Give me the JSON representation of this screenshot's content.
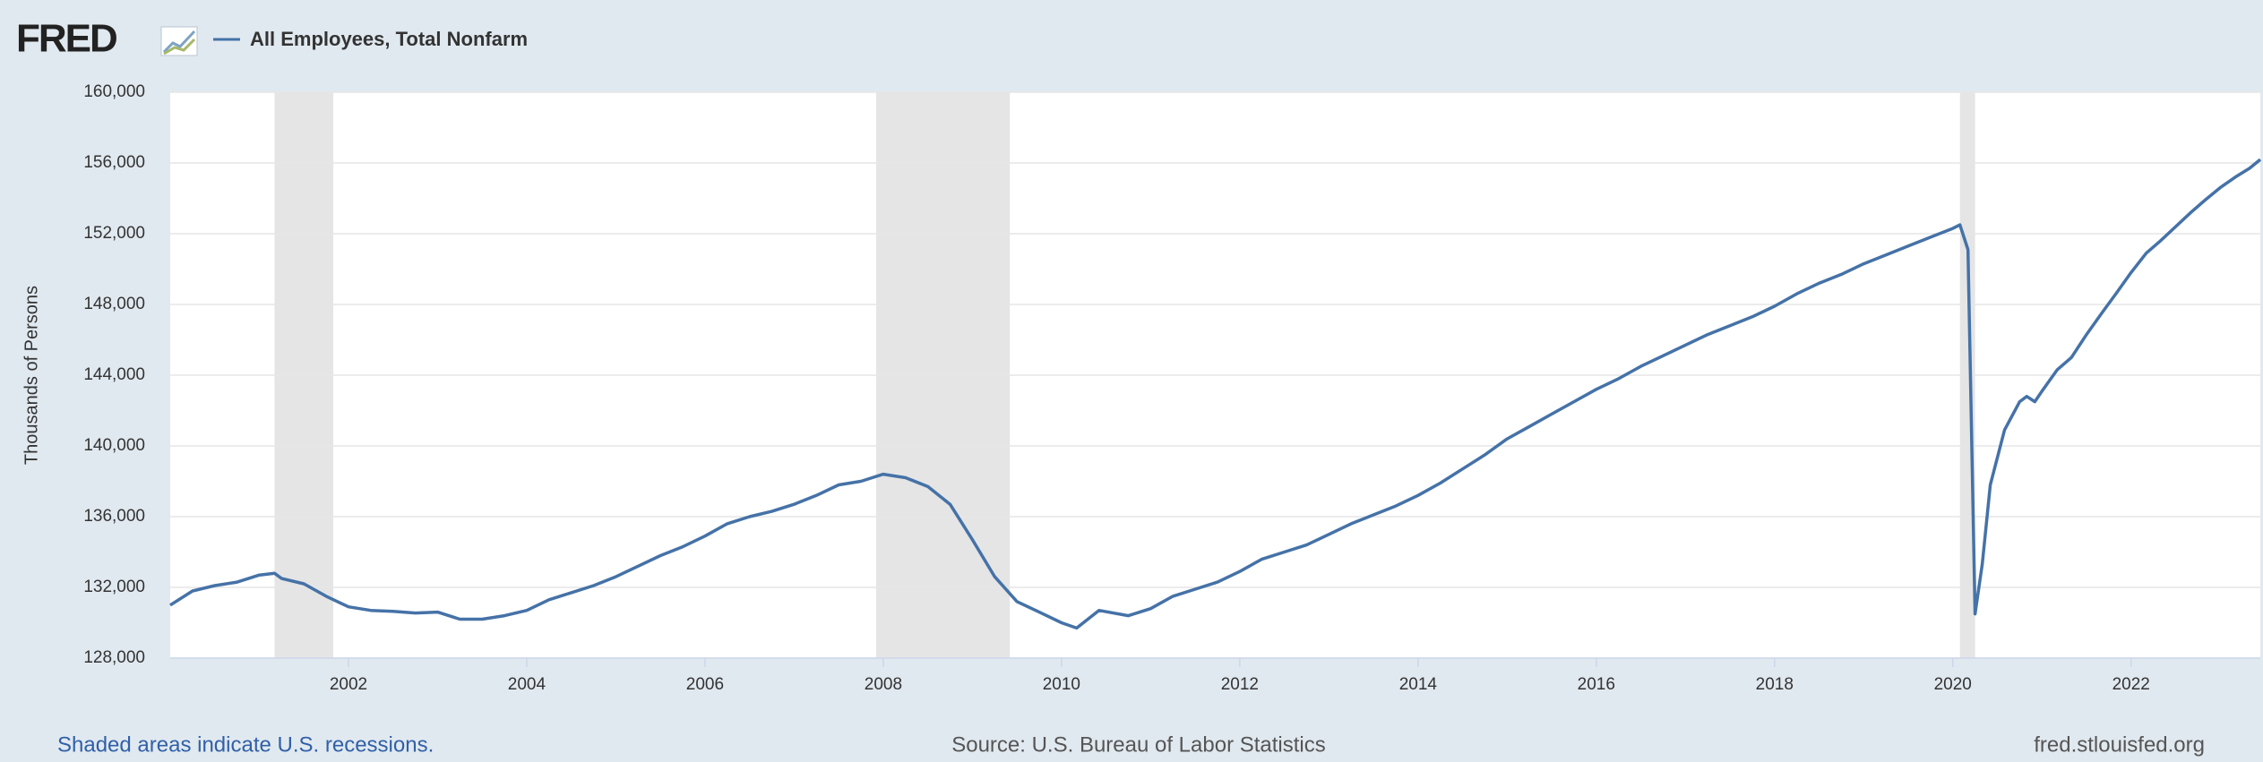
{
  "logo": "FRED",
  "footer": {
    "note": "Shaded areas indicate U.S. recessions.",
    "source": "Source: U.S. Bureau of Labor Statistics",
    "url": "fred.stlouisfed.org"
  },
  "chart_data": {
    "type": "line",
    "ylabel": "Thousands of Persons",
    "xlim": [
      2000,
      2023.45
    ],
    "xticks": [
      2002,
      2004,
      2006,
      2008,
      2010,
      2012,
      2014,
      2016,
      2018,
      2020,
      2022
    ],
    "ylim": [
      128000,
      160000
    ],
    "yticks": [
      {
        "value": 128000,
        "label": "128,000"
      },
      {
        "value": 132000,
        "label": "132,000"
      },
      {
        "value": 136000,
        "label": "136,000"
      },
      {
        "value": 140000,
        "label": "140,000"
      },
      {
        "value": 144000,
        "label": "144,000"
      },
      {
        "value": 148000,
        "label": "148,000"
      },
      {
        "value": 152000,
        "label": "152,000"
      },
      {
        "value": 156000,
        "label": "156,000"
      },
      {
        "value": 160000,
        "label": "160,000"
      }
    ],
    "grid": true,
    "recessions": [
      [
        2001.17,
        2001.83
      ],
      [
        2007.92,
        2009.42
      ],
      [
        2020.08,
        2020.25
      ]
    ],
    "x": [
      2000.0,
      2000.25,
      2000.5,
      2000.75,
      2001.0,
      2001.17,
      2001.25,
      2001.5,
      2001.75,
      2002.0,
      2002.25,
      2002.5,
      2002.75,
      2003.0,
      2003.25,
      2003.5,
      2003.75,
      2004.0,
      2004.25,
      2004.5,
      2004.75,
      2005.0,
      2005.25,
      2005.5,
      2005.75,
      2006.0,
      2006.25,
      2006.5,
      2006.75,
      2007.0,
      2007.25,
      2007.5,
      2007.75,
      2008.0,
      2008.25,
      2008.5,
      2008.75,
      2009.0,
      2009.25,
      2009.5,
      2009.75,
      2010.0,
      2010.17,
      2010.42,
      2010.75,
      2011.0,
      2011.25,
      2011.5,
      2011.75,
      2012.0,
      2012.25,
      2012.5,
      2012.75,
      2013.0,
      2013.25,
      2013.5,
      2013.75,
      2014.0,
      2014.25,
      2014.5,
      2014.75,
      2015.0,
      2015.25,
      2015.5,
      2015.75,
      2016.0,
      2016.25,
      2016.5,
      2016.75,
      2017.0,
      2017.25,
      2017.5,
      2017.75,
      2018.0,
      2018.25,
      2018.5,
      2018.75,
      2019.0,
      2019.25,
      2019.5,
      2019.75,
      2020.0,
      2020.08,
      2020.17,
      2020.25,
      2020.33,
      2020.42,
      2020.58,
      2020.75,
      2020.83,
      2020.92,
      2021.0,
      2021.17,
      2021.33,
      2021.5,
      2021.67,
      2021.83,
      2022.0,
      2022.17,
      2022.33,
      2022.5,
      2022.67,
      2022.83,
      2023.0,
      2023.17,
      2023.33,
      2023.45
    ],
    "series": [
      {
        "name": "All Employees, Total Nonfarm",
        "color": "#4572a7",
        "values": [
          131000,
          131800,
          132100,
          132300,
          132700,
          132800,
          132500,
          132200,
          131500,
          130900,
          130700,
          130650,
          130550,
          130600,
          130200,
          130200,
          130400,
          130700,
          131300,
          131700,
          132100,
          132600,
          133200,
          133800,
          134300,
          134900,
          135600,
          136000,
          136300,
          136700,
          137200,
          137800,
          138000,
          138400,
          138200,
          137700,
          136700,
          134700,
          132600,
          131200,
          130600,
          130000,
          129700,
          130700,
          130400,
          130800,
          131500,
          131900,
          132300,
          132900,
          133600,
          134000,
          134400,
          135000,
          135600,
          136100,
          136600,
          137200,
          137900,
          138700,
          139500,
          140400,
          141100,
          141800,
          142500,
          143200,
          143800,
          144500,
          145100,
          145700,
          146300,
          146800,
          147300,
          147900,
          148600,
          149200,
          149700,
          150300,
          150800,
          151300,
          151800,
          152300,
          152500,
          151100,
          130500,
          133300,
          137800,
          140900,
          142500,
          142800,
          142500,
          143100,
          144300,
          145000,
          146300,
          147500,
          148600,
          149800,
          150900,
          151600,
          152400,
          153200,
          153900,
          154600,
          155200,
          155700,
          156200
        ]
      }
    ]
  }
}
